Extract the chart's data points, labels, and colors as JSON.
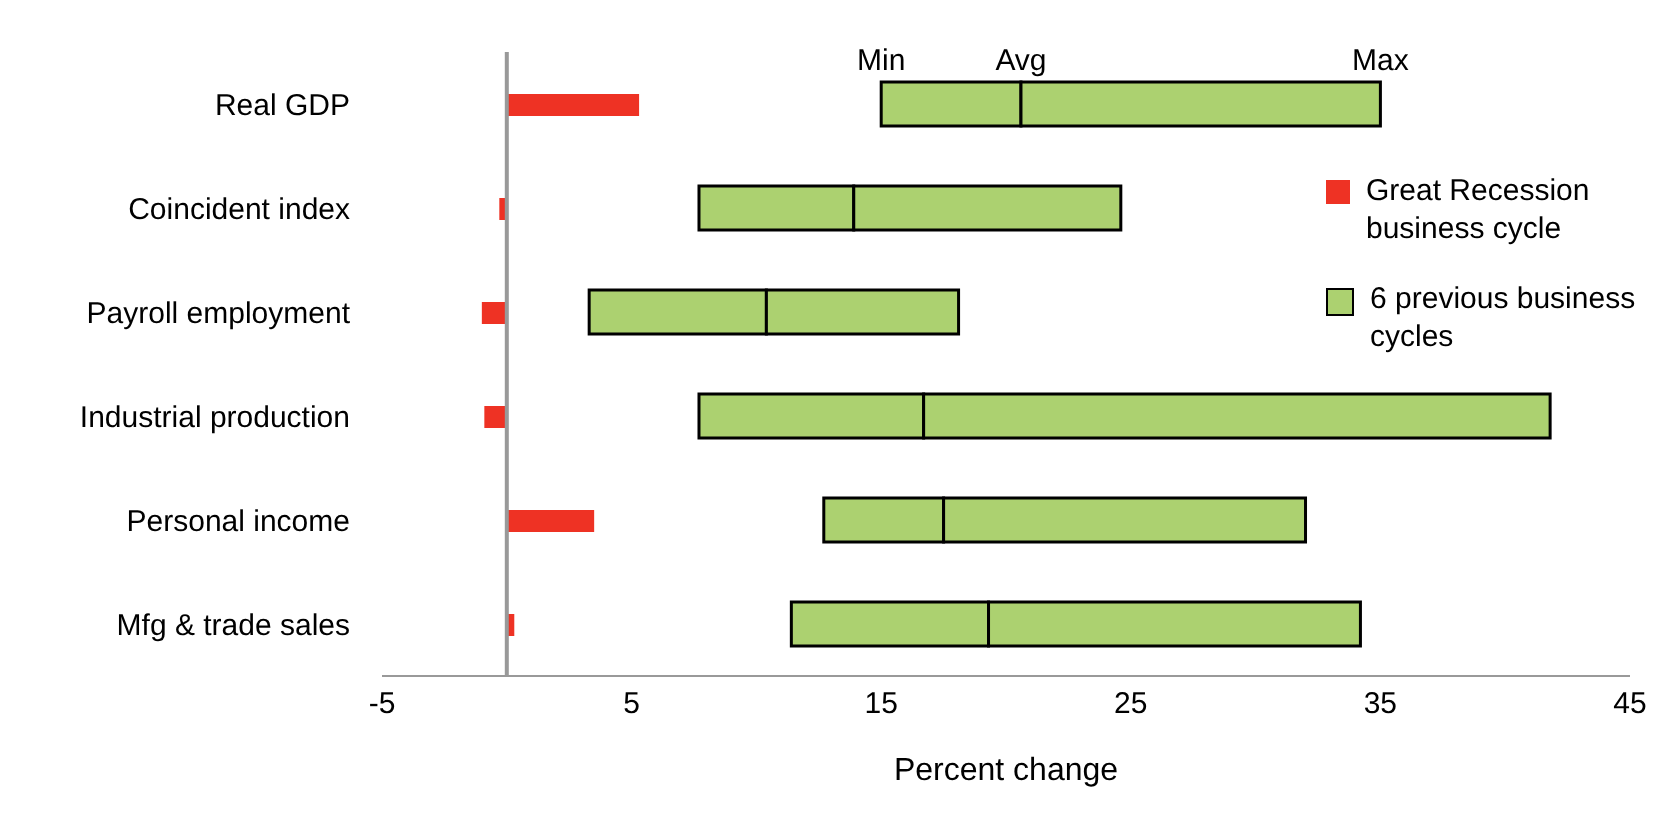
{
  "chart_data": {
    "type": "bar",
    "orientation": "horizontal",
    "xlabel": "Percent change",
    "categories": [
      "Real GDP",
      "Coincident index",
      "Payroll employment",
      "Industrial production",
      "Personal income",
      "Mfg & trade sales"
    ],
    "series": [
      {
        "name": "Great Recession business cycle",
        "color": "#ee3224",
        "values": [
          5.3,
          -0.3,
          -1.0,
          -0.9,
          3.5,
          0.3
        ]
      },
      {
        "name": "6 previous business cycles",
        "color": "#acd170",
        "base": [
          15.0,
          7.7,
          3.3,
          7.7,
          12.7,
          11.4
        ],
        "values": [
          5.6,
          6.2,
          7.1,
          9.0,
          4.8,
          7.9
        ]
      },
      {
        "color": "#acd170",
        "base": [
          20.6,
          13.9,
          10.4,
          16.7,
          17.5,
          19.3
        ],
        "values": [
          14.4,
          10.7,
          7.7,
          25.1,
          14.5,
          14.9
        ]
      }
    ],
    "annotations": [
      "Min",
      "Avg",
      "Max"
    ],
    "xlim": [
      -5,
      45
    ],
    "xticks": [
      -5,
      5,
      15,
      25,
      35,
      45
    ],
    "grid": false,
    "legend": "right"
  }
}
